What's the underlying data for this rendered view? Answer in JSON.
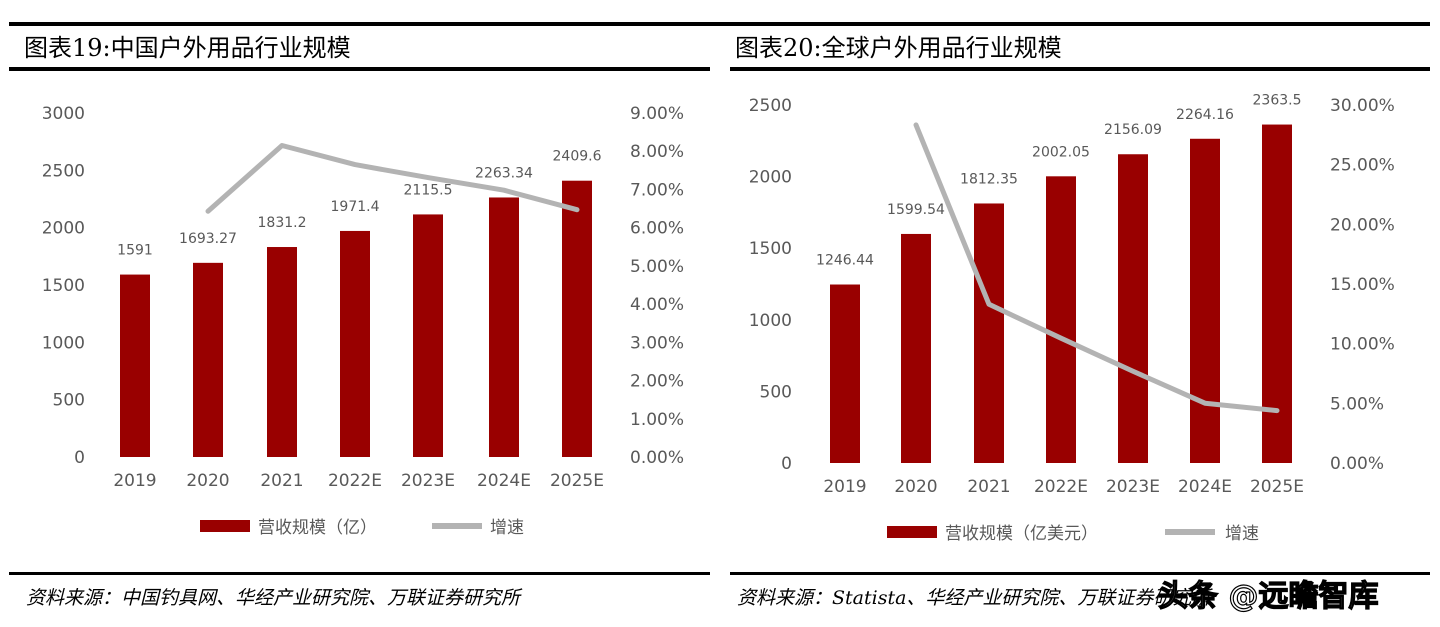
{
  "chart_data": [
    {
      "type": "bar+line",
      "title": "图表19:中国户外用品行业规模",
      "categories": [
        "2019",
        "2020",
        "2021",
        "2022E",
        "2023E",
        "2024E",
        "2025E"
      ],
      "series": [
        {
          "name": "营收规模（亿）",
          "type": "bar",
          "axis": "left",
          "values": [
            1591,
            1693.27,
            1831.2,
            1971.4,
            2115.5,
            2263.34,
            2409.6
          ],
          "data_labels": [
            "1591",
            "1693.27",
            "1831.2",
            "1971.4",
            "2115.5",
            "2263.34",
            "2409.6"
          ]
        },
        {
          "name": "增速",
          "type": "line",
          "axis": "right",
          "values": [
            null,
            6.43,
            8.15,
            7.65,
            7.31,
            6.98,
            6.47
          ]
        }
      ],
      "ylim": [
        0,
        3000
      ],
      "yticks": [
        "0",
        "500",
        "1000",
        "1500",
        "2000",
        "2500",
        "3000"
      ],
      "y2lim": [
        0,
        9
      ],
      "y2ticks": [
        "0.00%",
        "1.00%",
        "2.00%",
        "3.00%",
        "4.00%",
        "5.00%",
        "6.00%",
        "7.00%",
        "8.00%",
        "9.00%"
      ],
      "legend": "bottom",
      "grid": false,
      "source": "资料来源：中国钓具网、华经产业研究院、万联证券研究所"
    },
    {
      "type": "bar+line",
      "title": "图表20:全球户外用品行业规模",
      "categories": [
        "2019",
        "2020",
        "2021",
        "2022E",
        "2023E",
        "2024E",
        "2025E"
      ],
      "series": [
        {
          "name": "营收规模（亿美元）",
          "type": "bar",
          "axis": "left",
          "values": [
            1246.44,
            1599.54,
            1812.35,
            2002.05,
            2156.09,
            2264.16,
            2363.5
          ],
          "data_labels": [
            "1246.44",
            "1599.54",
            "1812.35",
            "2002.05",
            "2156.09",
            "2264.16",
            "2363.5"
          ]
        },
        {
          "name": "增速",
          "type": "line",
          "axis": "right",
          "values": [
            null,
            28.33,
            13.3,
            10.46,
            7.69,
            5.01,
            4.39
          ]
        }
      ],
      "ylim": [
        0,
        2500
      ],
      "yticks": [
        "0",
        "500",
        "1000",
        "1500",
        "2000",
        "2500"
      ],
      "y2lim": [
        0,
        30
      ],
      "y2ticks": [
        "0.00%",
        "5.00%",
        "10.00%",
        "15.00%",
        "20.00%",
        "25.00%",
        "30.00%"
      ],
      "legend": "bottom",
      "grid": false,
      "source": "资料来源：Statista、华经产业研究院、万联证券研究所"
    }
  ],
  "colors": {
    "bar": "#990000",
    "line": "#b3b3b3"
  },
  "watermark": "头条 @远瞻智库"
}
